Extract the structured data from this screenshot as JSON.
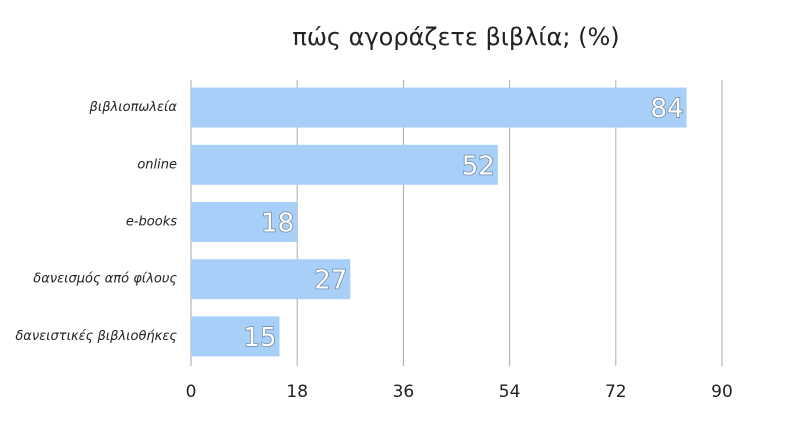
{
  "chart_data": {
    "type": "bar",
    "orientation": "horizontal",
    "title": "πώς αγοράζετε βιβλία; (%)",
    "categories": [
      "βιβλιοπωλεία",
      "online",
      "e-books",
      "δανεισμός από φίλους",
      "δανειστικές βιβλιοθήκες"
    ],
    "values": [
      84,
      52,
      18,
      27,
      15
    ],
    "color": "#a8cff8",
    "xlim": [
      0,
      90
    ],
    "xticks": [
      0,
      18,
      36,
      54,
      72,
      90
    ],
    "grid": true,
    "data_labels": true
  }
}
